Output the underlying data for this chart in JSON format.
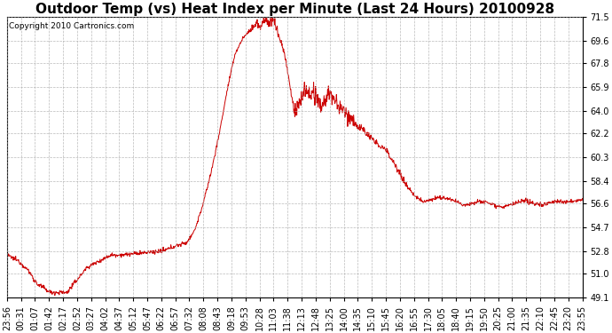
{
  "title": "Outdoor Temp (vs) Heat Index per Minute (Last 24 Hours) 20100928",
  "copyright_text": "Copyright 2010 Cartronics.com",
  "line_color": "#cc0000",
  "background_color": "#ffffff",
  "grid_color": "#aaaaaa",
  "ylim": [
    49.1,
    71.5
  ],
  "yticks": [
    49.1,
    51.0,
    52.8,
    54.7,
    56.6,
    58.4,
    60.3,
    62.2,
    64.0,
    65.9,
    67.8,
    69.6,
    71.5
  ],
  "xtick_labels": [
    "23:56",
    "00:31",
    "01:07",
    "01:42",
    "02:17",
    "02:52",
    "03:27",
    "04:02",
    "04:37",
    "05:12",
    "05:47",
    "06:22",
    "06:57",
    "07:32",
    "08:08",
    "08:43",
    "09:18",
    "09:53",
    "10:28",
    "11:03",
    "11:38",
    "12:13",
    "12:48",
    "13:25",
    "14:00",
    "14:35",
    "15:10",
    "15:45",
    "16:20",
    "16:55",
    "17:30",
    "18:05",
    "18:40",
    "19:15",
    "19:50",
    "20:25",
    "21:00",
    "21:35",
    "22:10",
    "22:45",
    "23:20",
    "23:55"
  ],
  "n_points": 1440,
  "keypoints": [
    [
      0,
      52.5
    ],
    [
      30,
      52.0
    ],
    [
      55,
      51.2
    ],
    [
      75,
      50.2
    ],
    [
      110,
      49.5
    ],
    [
      150,
      49.5
    ],
    [
      175,
      50.5
    ],
    [
      200,
      51.5
    ],
    [
      230,
      52.0
    ],
    [
      260,
      52.5
    ],
    [
      290,
      52.5
    ],
    [
      320,
      52.6
    ],
    [
      350,
      52.7
    ],
    [
      390,
      52.8
    ],
    [
      420,
      53.2
    ],
    [
      450,
      53.5
    ],
    [
      470,
      54.5
    ],
    [
      490,
      56.5
    ],
    [
      510,
      59.0
    ],
    [
      530,
      62.0
    ],
    [
      550,
      65.5
    ],
    [
      570,
      68.5
    ],
    [
      590,
      69.8
    ],
    [
      610,
      70.5
    ],
    [
      625,
      71.0
    ],
    [
      635,
      70.5
    ],
    [
      640,
      71.2
    ],
    [
      648,
      71.4
    ],
    [
      655,
      70.8
    ],
    [
      660,
      71.3
    ],
    [
      668,
      71.2
    ],
    [
      680,
      70.0
    ],
    [
      695,
      68.5
    ],
    [
      710,
      65.5
    ],
    [
      720,
      63.8
    ],
    [
      730,
      64.5
    ],
    [
      745,
      65.8
    ],
    [
      755,
      65.2
    ],
    [
      765,
      65.5
    ],
    [
      775,
      64.8
    ],
    [
      785,
      64.3
    ],
    [
      795,
      64.8
    ],
    [
      805,
      65.5
    ],
    [
      815,
      65.0
    ],
    [
      825,
      64.5
    ],
    [
      835,
      64.2
    ],
    [
      845,
      63.8
    ],
    [
      860,
      63.5
    ],
    [
      875,
      62.8
    ],
    [
      890,
      62.5
    ],
    [
      905,
      62.0
    ],
    [
      920,
      61.5
    ],
    [
      935,
      61.2
    ],
    [
      950,
      60.8
    ],
    [
      975,
      59.5
    ],
    [
      990,
      58.5
    ],
    [
      1005,
      57.8
    ],
    [
      1020,
      57.2
    ],
    [
      1040,
      56.8
    ],
    [
      1060,
      56.9
    ],
    [
      1080,
      57.1
    ],
    [
      1100,
      57.0
    ],
    [
      1120,
      56.8
    ],
    [
      1140,
      56.5
    ],
    [
      1160,
      56.6
    ],
    [
      1180,
      56.8
    ],
    [
      1200,
      56.7
    ],
    [
      1220,
      56.5
    ],
    [
      1240,
      56.3
    ],
    [
      1260,
      56.5
    ],
    [
      1280,
      56.7
    ],
    [
      1300,
      56.8
    ],
    [
      1320,
      56.6
    ],
    [
      1340,
      56.5
    ],
    [
      1360,
      56.7
    ],
    [
      1380,
      56.8
    ],
    [
      1400,
      56.7
    ],
    [
      1420,
      56.8
    ],
    [
      1439,
      56.9
    ]
  ],
  "title_fontsize": 11,
  "tick_fontsize": 7,
  "copyright_fontsize": 6.5
}
